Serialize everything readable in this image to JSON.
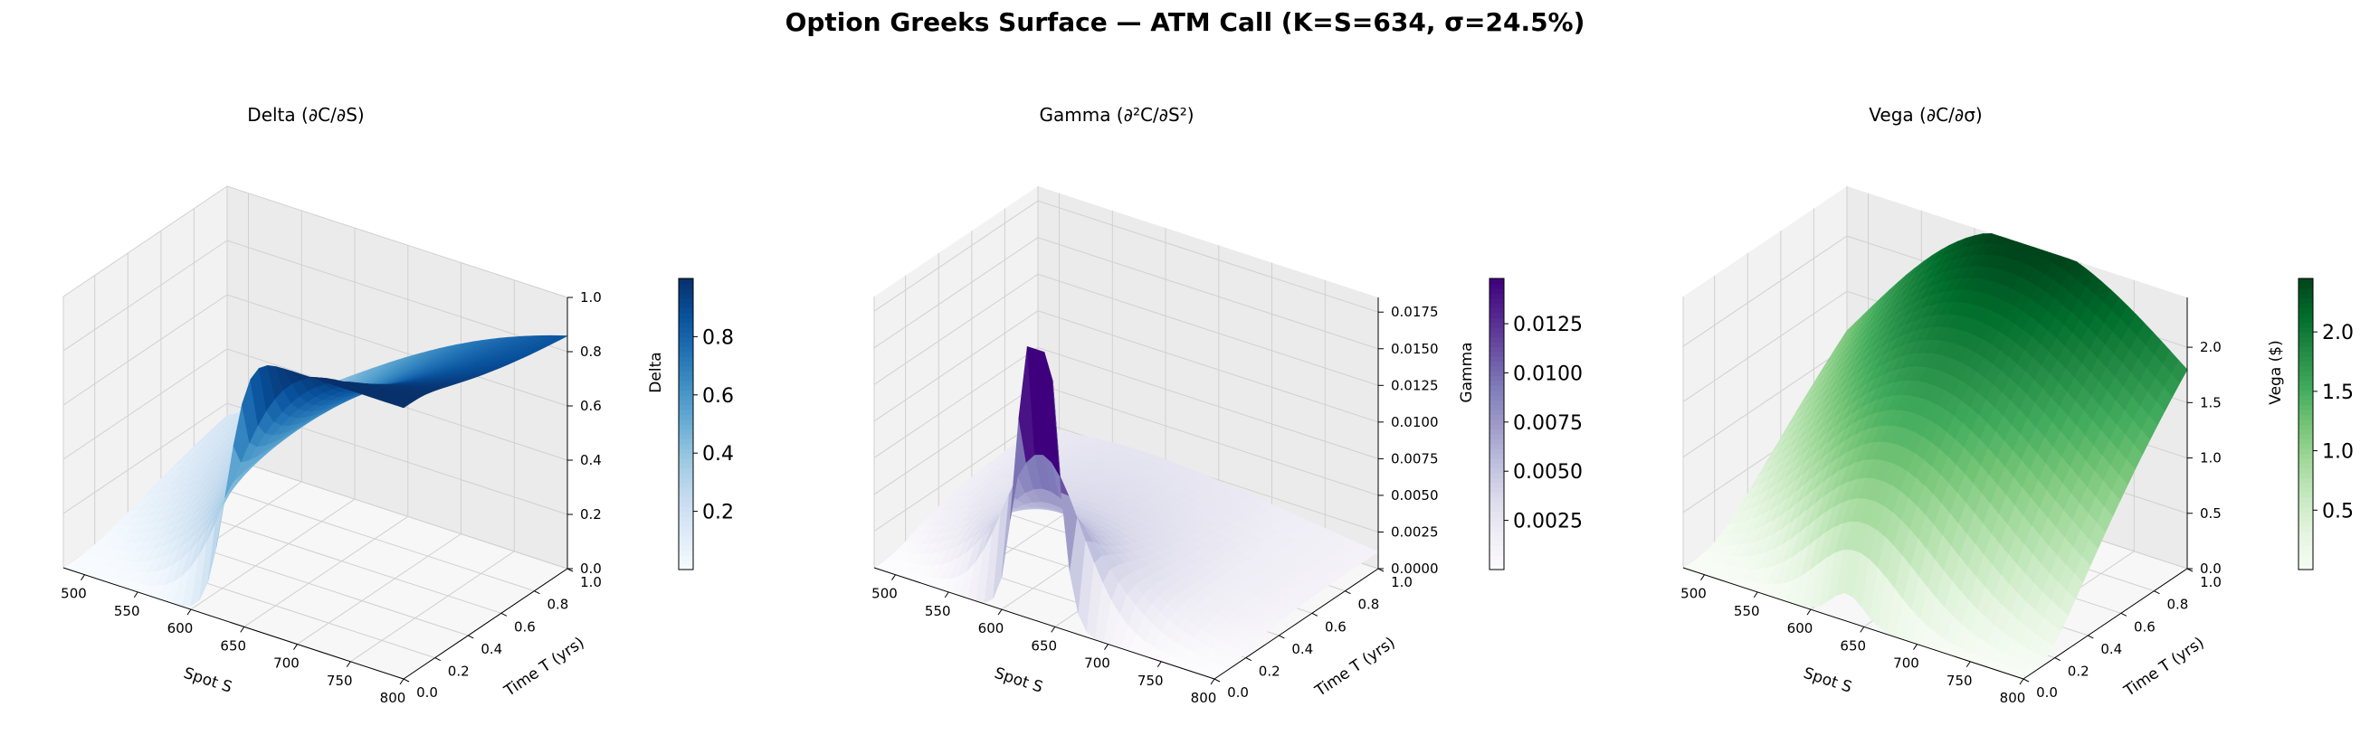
{
  "figure": {
    "title": "Option Greeks Surface — ATM Call (K=S=634, σ=24.5%)"
  },
  "chart_data": [
    {
      "type": "surface3d",
      "title": "Delta (∂C/∂S)",
      "xlabel": "Spot S",
      "ylabel": "Time T (yrs)",
      "zlabel": "Delta",
      "colorbar_label": "Delta",
      "greek": "delta",
      "colormap": "Blues",
      "x_ticks": [
        500,
        550,
        600,
        650,
        700,
        750,
        800
      ],
      "y_ticks": [
        0.0,
        0.2,
        0.4,
        0.6,
        0.8,
        1.0
      ],
      "z_ticks": [
        0.0,
        0.2,
        0.4,
        0.6,
        0.8,
        1.0
      ],
      "z_tick_labels": [
        "0.0",
        "0.2",
        "0.4",
        "0.6",
        "0.8",
        "1.0"
      ],
      "zlim": [
        0,
        1.0
      ],
      "colorbar_ticks": [
        0.2,
        0.4,
        0.6,
        0.8
      ],
      "colorbar_tick_labels": [
        "0.2",
        "0.4",
        "0.6",
        "0.8"
      ],
      "colorbar_range": [
        0.0,
        1.0
      ],
      "x_range": [
        480,
        800
      ],
      "y_range": [
        0.01,
        1.0
      ]
    },
    {
      "type": "surface3d",
      "title": "Gamma (∂²C/∂S²)",
      "xlabel": "Spot S",
      "ylabel": "Time T (yrs)",
      "zlabel": "Gamma",
      "colorbar_label": "Gamma",
      "greek": "gamma",
      "colormap": "Purples",
      "x_ticks": [
        500,
        550,
        600,
        650,
        700,
        750,
        800
      ],
      "y_ticks": [
        0.0,
        0.2,
        0.4,
        0.6,
        0.8,
        1.0
      ],
      "z_ticks": [
        0.0,
        0.0025,
        0.005,
        0.0075,
        0.01,
        0.0125,
        0.015,
        0.0175
      ],
      "z_tick_labels": [
        "0.0000",
        "0.0025",
        "0.0050",
        "0.0075",
        "0.0100",
        "0.0125",
        "0.0150",
        "0.0175"
      ],
      "zlim": [
        0,
        0.0185
      ],
      "colorbar_ticks": [
        0.0025,
        0.005,
        0.0075,
        0.01,
        0.0125
      ],
      "colorbar_tick_labels": [
        "0.0025",
        "0.0050",
        "0.0075",
        "0.0100",
        "0.0125"
      ],
      "colorbar_range": [
        0.0,
        0.0148
      ],
      "x_range": [
        480,
        800
      ],
      "y_range": [
        0.01,
        1.0
      ]
    },
    {
      "type": "surface3d",
      "title": "Vega (∂C/∂σ)",
      "xlabel": "Spot S",
      "ylabel": "Time T (yrs)",
      "zlabel": "Vega ($)",
      "colorbar_label": "Vega ($)",
      "greek": "vega",
      "colormap": "Greens",
      "x_ticks": [
        500,
        550,
        600,
        650,
        700,
        750,
        800
      ],
      "y_ticks": [
        0.0,
        0.2,
        0.4,
        0.6,
        0.8,
        1.0
      ],
      "z_ticks": [
        0.0,
        0.5,
        1.0,
        1.5,
        2.0
      ],
      "z_tick_labels": [
        "0.0",
        "0.5",
        "1.0",
        "1.5",
        "2.0"
      ],
      "zlim": [
        0,
        2.45
      ],
      "colorbar_ticks": [
        0.5,
        1.0,
        1.5,
        2.0
      ],
      "colorbar_tick_labels": [
        "0.5",
        "1.0",
        "1.5",
        "2.0"
      ],
      "colorbar_range": [
        0.0,
        2.45
      ],
      "x_range": [
        480,
        800
      ],
      "y_range": [
        0.01,
        1.0
      ]
    }
  ],
  "model": {
    "strike": 634,
    "sigma": 0.245
  },
  "colormaps": {
    "Blues": [
      "#f7fbff",
      "#deebf7",
      "#c6dbef",
      "#9ecae1",
      "#6baed6",
      "#4292c6",
      "#2171b5",
      "#08519c",
      "#08306b"
    ],
    "Purples": [
      "#fcfbfd",
      "#efedf5",
      "#dadaeb",
      "#bcbddc",
      "#9e9ac8",
      "#807dba",
      "#6a51a3",
      "#54278f",
      "#3f007d"
    ],
    "Greens": [
      "#f7fcf5",
      "#e5f5e0",
      "#c7e9c0",
      "#a1d99b",
      "#74c476",
      "#41ab5d",
      "#238b45",
      "#006d2c",
      "#00441b"
    ]
  },
  "pane_colors": {
    "left": "#f2f2f2",
    "right": "#ebebeb",
    "floor": "#f7f7f7",
    "grid": "#d0d0d0"
  }
}
